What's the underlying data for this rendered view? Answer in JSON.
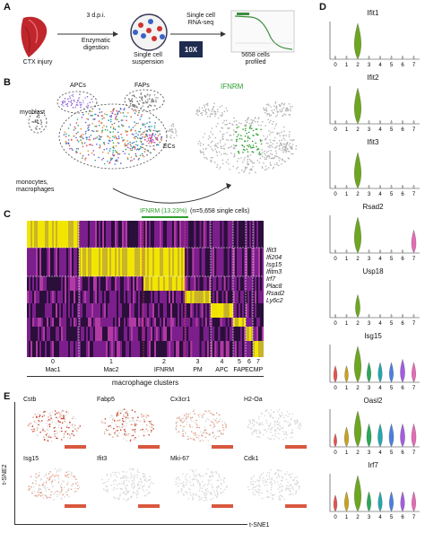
{
  "panels": {
    "A": "A",
    "B": "B",
    "C": "C",
    "D": "D",
    "E": "E"
  },
  "panel_a": {
    "step1": "CTX injury",
    "arrow1_top": "3 d.p.i.",
    "arrow1_bottom": "Enzymatic\ndigestion",
    "step2": "Single cell\nsuspension",
    "arrow2_top": "Single cell\nRNA-seq",
    "tenx_logo": "10X GENOMICS",
    "step3": "5658 cells\nprofiled"
  },
  "panel_b": {
    "clusters": [
      "myoblast",
      "APCs",
      "FAPs",
      "ECs",
      "monocytes,\nmacrophages"
    ],
    "highlight": "IFNRM",
    "highlight_color": "#2e9e2e"
  },
  "panel_c": {
    "bracket_label": "IFNRM (13.23%)",
    "bracket_note": "(n=5,658 single cells)",
    "genes": [
      "Ifit3",
      "Ifi204",
      "Isg15",
      "Ifitm3",
      "Irf7",
      "Plac8",
      "Rsad2",
      "Ly6c2"
    ],
    "cluster_numbers": [
      "0",
      "1",
      "2",
      "3",
      "4",
      "5",
      "6",
      "7"
    ],
    "cluster_names": [
      "Mac1",
      "Mac2",
      "IFNRM",
      "PM",
      "APC",
      "FAP",
      "EC",
      "MP"
    ],
    "axis_title": "macrophage clusters"
  },
  "panel_d": {
    "genes": [
      "Ifit1",
      "Ifit2",
      "Ifit3",
      "Rsad2",
      "Usp18",
      "Isg15",
      "Oasl2",
      "Irf7"
    ],
    "ticks": [
      "0",
      "1",
      "2",
      "3",
      "4",
      "5",
      "6",
      "7"
    ],
    "colors": [
      "#e6524b",
      "#c9a21b",
      "#6da61f",
      "#2aa85a",
      "#23a7b0",
      "#4a7fe0",
      "#a35ee0",
      "#e66ab6"
    ]
  },
  "panel_e": {
    "genes": [
      "Cstb",
      "Fabp5",
      "Cx3cr1",
      "H2-Oa",
      "Isg15",
      "Ifit3",
      "Mki-67",
      "Cdk1"
    ],
    "y_axis": "t-SNE2",
    "x_axis": "t-SNE1"
  }
}
